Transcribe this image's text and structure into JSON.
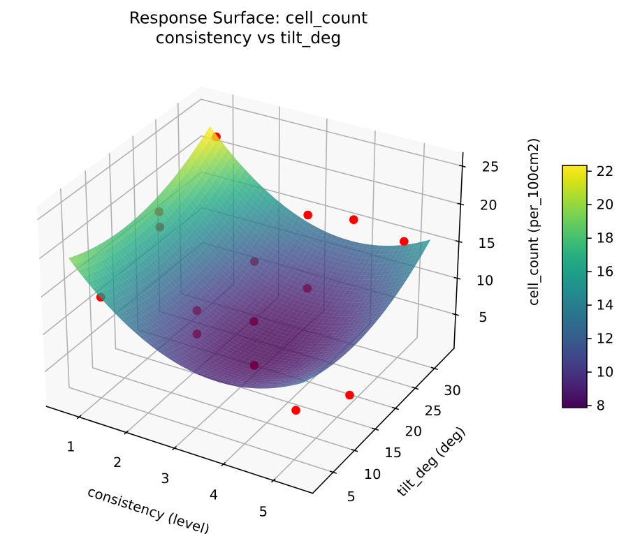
{
  "title": {
    "line1": "Response Surface: cell_count",
    "line2": "consistency vs tilt_deg"
  },
  "chart_data": {
    "type": "surface3d",
    "title": "Response Surface: cell_count\nconsistency vs tilt_deg",
    "axes": {
      "x": {
        "label": "consistency (level)",
        "ticks": [
          "1",
          "2",
          "3",
          "4",
          "5"
        ],
        "tick_values": [
          1,
          2,
          3,
          4,
          5
        ],
        "range": [
          0.299,
          5.772
        ]
      },
      "y": {
        "label": "tilt_deg (deg)",
        "ticks": [
          "5",
          "10",
          "15",
          "20",
          "25",
          "30"
        ],
        "tick_values": [
          5,
          10,
          15,
          20,
          25,
          30
        ],
        "range": [
          0.31,
          35.234
        ]
      },
      "z": {
        "label": "cell_count (per_100cm2)",
        "ticks": [
          "5",
          "10",
          "15",
          "20",
          "25"
        ],
        "tick_values": [
          5,
          10,
          15,
          20,
          25
        ],
        "range": [
          0.251,
          26.728
        ]
      }
    },
    "surface": {
      "model": "quadratic",
      "formula": "z = zm + a*(x-x0)^2 + b*(y-y0)^2 + c*(x-x0)*(y-y0)",
      "coeffs": {
        "zm": 7.77292,
        "a": 1.14655,
        "b": 0.01269,
        "c": -0.00125,
        "x0": 3.69996,
        "y0": 13.86941
      },
      "x_range": [
        0.692,
        5.358
      ],
      "y_range": [
        2.342,
        33.095
      ],
      "grid_n": 50,
      "colormap": "viridis",
      "alpha": 0.8
    },
    "scatter": {
      "color": "#ff0000",
      "marker": "circle",
      "points": [
        [
          0.88,
          32.57,
          22.0
        ],
        [
          2.79,
          33.32,
          14.24
        ],
        [
          3.75,
          33.39,
          15.26
        ],
        [
          4.81,
          33.27,
          14.24
        ],
        [
          1.33,
          2.45,
          15.84
        ],
        [
          5.35,
          13.71,
          4.73
        ],
        [
          5.27,
          2.15,
          9.06
        ],
        [
          0.83,
          19.98,
          17.59
        ],
        [
          0.99,
          18.47,
          16.54
        ],
        [
          2.39,
          25.0,
          11.2
        ],
        [
          3.49,
          25.23,
          9.44
        ],
        [
          2.25,
          13.35,
          10.19
        ],
        [
          3.09,
          17.16,
          8.33
        ],
        [
          2.57,
          9.95,
          9.43
        ],
        [
          3.81,
          9.28,
          8.03
        ]
      ]
    },
    "colorbar": {
      "colormap": "viridis",
      "vmin": 7.875,
      "vmax": 22.345,
      "ticks": [
        "8",
        "10",
        "12",
        "14",
        "16",
        "18",
        "20",
        "22"
      ],
      "tick_values": [
        8,
        10,
        12,
        14,
        16,
        18,
        20,
        22
      ]
    }
  },
  "colors": {
    "scatter": "#ff0000",
    "grid": "#b0b0b0",
    "pane": "#f8f8f8",
    "spine": "#000000",
    "text": "#000000",
    "background": "#ffffff",
    "colormap_stops": [
      "#440154",
      "#470d60",
      "#48186a",
      "#482374",
      "#472d7b",
      "#453781",
      "#424086",
      "#3e4989",
      "#3b528b",
      "#375b8d",
      "#33638d",
      "#2f6b8e",
      "#2c728e",
      "#297a8e",
      "#26828e",
      "#23898e",
      "#21918c",
      "#1f988b",
      "#1fa088",
      "#22a785",
      "#28ae80",
      "#32b67a",
      "#3fbc73",
      "#4ec36b",
      "#5ec962",
      "#70cf57",
      "#84d44b",
      "#98d83e",
      "#addc30",
      "#c2df23",
      "#d8e219",
      "#ece51b",
      "#fde725"
    ]
  }
}
